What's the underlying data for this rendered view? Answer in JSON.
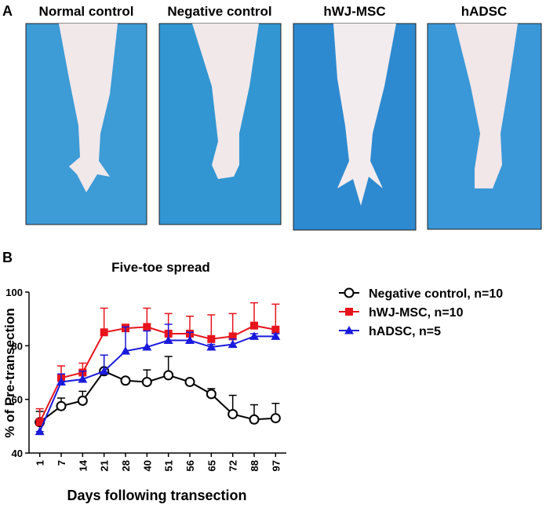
{
  "panel_a": {
    "label": "A",
    "photos": [
      "Normal control",
      "Negative control",
      "hWJ-MSC",
      "hADSC"
    ]
  },
  "chart_data": {
    "type": "line",
    "panel_label": "B",
    "title": "Five-toe spread",
    "x_label": "Days following transection",
    "y_label": "% of Pre-transection",
    "categories": [
      "1",
      "7",
      "14",
      "21",
      "28",
      "40",
      "51",
      "56",
      "65",
      "72",
      "88",
      "97"
    ],
    "ylim": [
      40,
      100
    ],
    "yticks": [
      40,
      60,
      80,
      100
    ],
    "series": [
      {
        "name": "Negative control, n=10",
        "color": "#000000",
        "marker": "open-circle",
        "values": [
          51.5,
          57.5,
          59.5,
          70.5,
          67,
          66.5,
          69,
          66.5,
          62,
          54.5,
          52.5,
          53
        ],
        "errors": [
          4,
          3,
          3.5,
          6,
          1,
          4.5,
          7,
          1,
          2,
          7,
          5.5,
          5.5
        ]
      },
      {
        "name": "hWJ-MSC, n=10",
        "color": "#e8141c",
        "marker": "square",
        "values": [
          51.5,
          68,
          70,
          85,
          86.5,
          87,
          84.5,
          84.5,
          82.5,
          83.5,
          87.5,
          86
        ],
        "errors": [
          5,
          4.5,
          3.5,
          9,
          1.5,
          7,
          7.5,
          6.5,
          9,
          8.5,
          8.5,
          9.5
        ]
      },
      {
        "name": "hADSC, n=5",
        "color": "#1a1adc",
        "marker": "triangle",
        "values": [
          48,
          66.5,
          67.5,
          70.5,
          78,
          79.5,
          82,
          82,
          79.5,
          80.5,
          83.5,
          83.5
        ],
        "errors": [
          0,
          3,
          3,
          6,
          9,
          6,
          6,
          3,
          1,
          2,
          1,
          1
        ]
      }
    ]
  }
}
